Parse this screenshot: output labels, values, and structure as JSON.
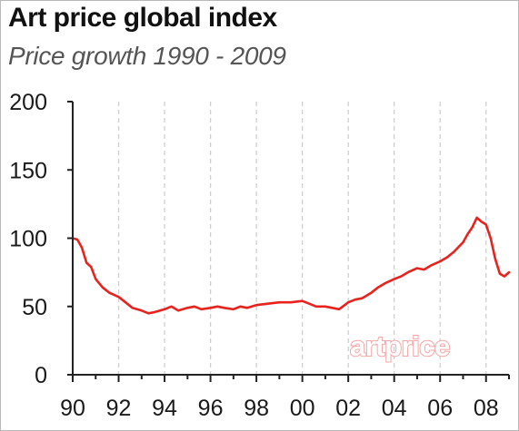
{
  "colors": {
    "series": "#e8231d",
    "grid": "#cfcfcf",
    "axis": "#222222",
    "watermark": "#f4a6a6"
  },
  "logo": {
    "text": "artprice"
  },
  "chart_data": {
    "type": "line",
    "title": "Art price global index",
    "subtitle": "Price growth 1990 - 2009",
    "xlabel": "",
    "ylabel": "",
    "xlim": [
      1990,
      2009
    ],
    "ylim": [
      0,
      200
    ],
    "yticks": [
      0,
      50,
      100,
      150,
      200
    ],
    "ytick_labels": [
      "0",
      "50",
      "100",
      "150",
      "200"
    ],
    "xticks": [
      1990,
      1992,
      1994,
      1996,
      1998,
      2000,
      2002,
      2004,
      2006,
      2008
    ],
    "xtick_labels": [
      "90",
      "92",
      "94",
      "96",
      "98",
      "00",
      "02",
      "04",
      "06",
      "08"
    ],
    "grid": {
      "vertical": true,
      "horizontal": false
    },
    "series": [
      {
        "x": [
          1990.0,
          1990.2,
          1990.4,
          1990.6,
          1990.8,
          1991.0,
          1991.3,
          1991.6,
          1992.0,
          1992.3,
          1992.6,
          1993.0,
          1993.3,
          1993.6,
          1994.0,
          1994.3,
          1994.6,
          1995.0,
          1995.3,
          1995.6,
          1996.0,
          1996.3,
          1996.6,
          1997.0,
          1997.3,
          1997.6,
          1998.0,
          1998.5,
          1999.0,
          1999.5,
          2000.0,
          2000.3,
          2000.6,
          2001.0,
          2001.3,
          2001.6,
          2002.0,
          2002.3,
          2002.6,
          2003.0,
          2003.3,
          2003.6,
          2004.0,
          2004.3,
          2004.6,
          2005.0,
          2005.3,
          2005.6,
          2006.0,
          2006.3,
          2006.6,
          2007.0,
          2007.2,
          2007.4,
          2007.6,
          2007.8,
          2008.0,
          2008.2,
          2008.4,
          2008.6,
          2008.8,
          2009.0
        ],
        "values": [
          100,
          99,
          93,
          82,
          79,
          70,
          64,
          60,
          57,
          53,
          49,
          47,
          45,
          46,
          48,
          50,
          47,
          49,
          50,
          48,
          49,
          50,
          49,
          48,
          50,
          49,
          51,
          52,
          53,
          53,
          54,
          52,
          50,
          50,
          49,
          48,
          53,
          55,
          56,
          60,
          64,
          67,
          70,
          72,
          75,
          78,
          77,
          80,
          83,
          86,
          90,
          97,
          103,
          108,
          115,
          112,
          110,
          100,
          85,
          74,
          72,
          75
        ]
      }
    ]
  }
}
